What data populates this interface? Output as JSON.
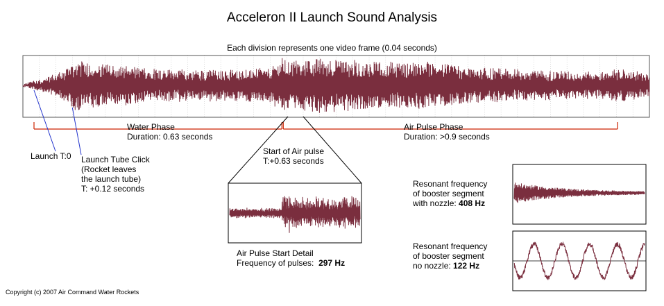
{
  "title": "Acceleron II Launch Sound Analysis",
  "subtitle": "Each division represents one video frame (0.04 seconds)",
  "colors": {
    "waveform": "#7a2e3e",
    "phase_bracket": "#cc2200",
    "pointer": "#2233cc",
    "grid": "#bbbbbb",
    "frame": "#000000"
  },
  "chart_data": [
    {
      "type": "line",
      "description_key": "main-waveform",
      "x_unit": "seconds",
      "frame_duration": 0.04,
      "xlim": [
        0,
        1.52
      ],
      "ylim": [
        -1,
        1
      ],
      "grid": "vertical divisions, one per video frame",
      "envelope": {
        "x": [
          0,
          0.05,
          0.1,
          0.12,
          0.2,
          0.3,
          0.4,
          0.5,
          0.6,
          0.63,
          0.65,
          0.72,
          0.8,
          0.9,
          1.0,
          1.1,
          1.2,
          1.3,
          1.4,
          1.45,
          1.52
        ],
        "y": [
          0.02,
          0.25,
          0.55,
          0.9,
          0.75,
          0.6,
          0.55,
          0.55,
          0.6,
          0.95,
          0.85,
          1.0,
          0.9,
          0.85,
          0.8,
          0.6,
          0.55,
          0.5,
          0.45,
          0.6,
          0.4
        ]
      },
      "phases": [
        {
          "name": "Water Phase",
          "duration_text": "Duration: 0.63 seconds",
          "start": 0,
          "end": 0.63
        },
        {
          "name": "Air Pulse Phase",
          "duration_text": "Duration: >0.9 seconds",
          "start": 0.63,
          "end": 1.52
        }
      ],
      "annotations": [
        {
          "text": "Launch T:0",
          "x": 0
        },
        {
          "lines": [
            "Launch Tube Click",
            "(Rocket leaves",
            "the launch tube)",
            "T: +0.12 seconds"
          ],
          "x": 0.12
        },
        {
          "lines": [
            "Start of Air pulse",
            "T:+0.63 seconds"
          ],
          "x": 0.63
        }
      ]
    },
    {
      "type": "line",
      "description_key": "air-pulse-start-detail",
      "caption_line1": "Air Pulse Start Detail",
      "caption_line2_prefix": "Frequency of pulses:",
      "frequency": "297 Hz"
    },
    {
      "type": "line",
      "description_key": "resonance-with-nozzle",
      "caption_lines": [
        "Resonant frequency",
        "of booster segment",
        "with nozzle:"
      ],
      "frequency": "408 Hz"
    },
    {
      "type": "line",
      "description_key": "resonance-no-nozzle",
      "caption_lines": [
        "Resonant frequency",
        "of booster segment",
        "no nozzle:"
      ],
      "frequency": "122 Hz"
    }
  ],
  "copyright": "Copyright (c) 2007 Air Command Water Rockets"
}
